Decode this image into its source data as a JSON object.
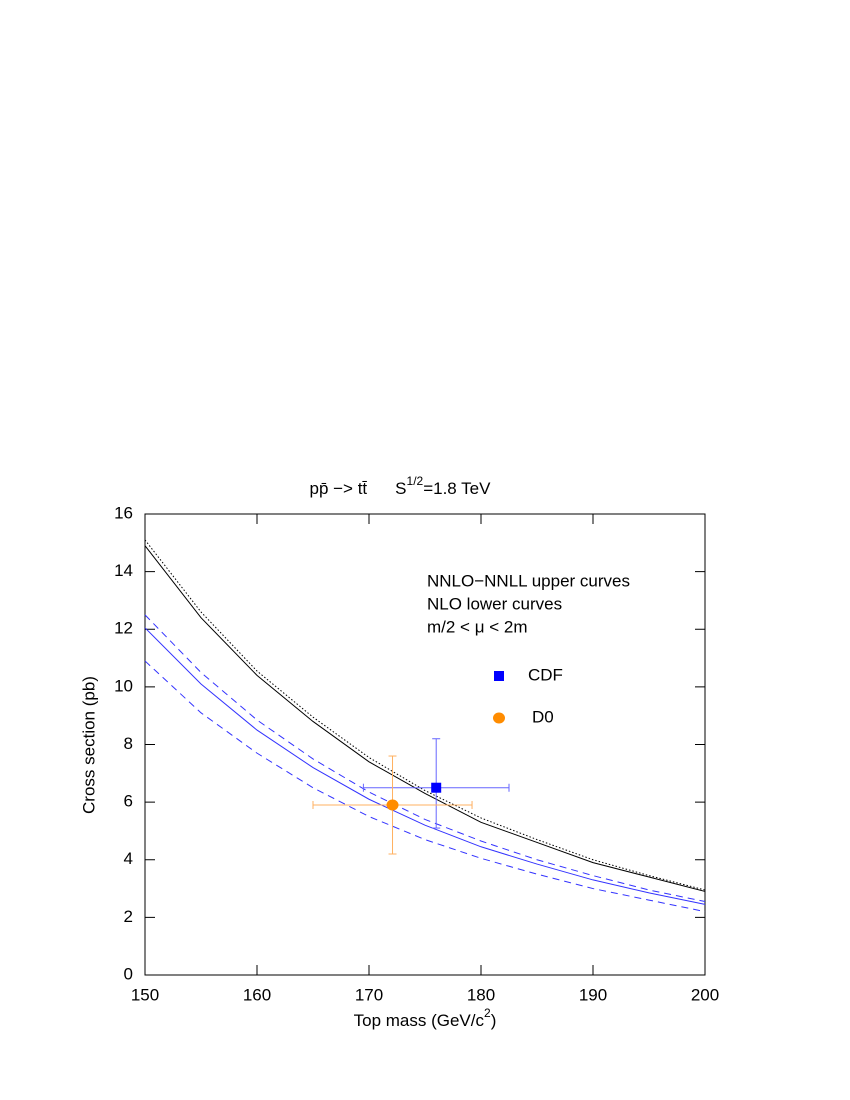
{
  "chart_data": {
    "type": "line",
    "title": {
      "process": "pp̄ −> tt̄",
      "energy_base": "S",
      "energy_exp": "1/2",
      "energy_rest": "=1.8 TeV"
    },
    "x_label": {
      "text": "Top mass (GeV/c",
      "exp": "2",
      "close": ")"
    },
    "y_label": "Cross section (pb)",
    "annotations": [
      "NNLO−NNLL upper curves",
      "NLO lower curves",
      "m/2 < μ < 2m"
    ],
    "x": [
      150,
      155,
      160,
      165,
      170,
      175,
      180,
      185,
      190,
      195,
      200
    ],
    "series": [
      {
        "color": "#000000",
        "style": "solid",
        "values": [
          14.9,
          12.4,
          10.4,
          8.8,
          7.4,
          6.3,
          5.3,
          4.6,
          3.9,
          3.4,
          2.9
        ]
      },
      {
        "color": "#000000",
        "style": "dotted",
        "values": [
          15.1,
          12.6,
          10.55,
          8.95,
          7.55,
          6.4,
          5.45,
          4.7,
          4.0,
          3.45,
          2.95
        ]
      },
      {
        "color": "#3333ff",
        "style": "solid",
        "values": [
          12.05,
          10.1,
          8.5,
          7.2,
          6.1,
          5.2,
          4.45,
          3.85,
          3.3,
          2.85,
          2.45
        ]
      },
      {
        "color": "#3333ff",
        "style": "dashed",
        "values": [
          12.5,
          10.5,
          8.85,
          7.5,
          6.35,
          5.4,
          4.65,
          4.0,
          3.45,
          2.95,
          2.55
        ]
      },
      {
        "color": "#3333ff",
        "style": "dashed",
        "values": [
          10.9,
          9.1,
          7.7,
          6.5,
          5.5,
          4.7,
          4.05,
          3.5,
          3.0,
          2.6,
          2.2
        ]
      }
    ],
    "points": [
      {
        "name": "CDF",
        "color": "#0000ff",
        "err_color": "#6666ff",
        "marker": "square",
        "x": 176.0,
        "xerr": [
          6.5,
          6.5
        ],
        "y": 6.5,
        "yerr": [
          1.4,
          1.7
        ]
      },
      {
        "name": "D0",
        "color": "#ff8c00",
        "err_color": "#ffb060",
        "marker": "circle",
        "x": 172.1,
        "xerr": [
          7.1,
          7.1
        ],
        "y": 5.9,
        "yerr": [
          1.7,
          1.7
        ]
      }
    ],
    "xlim": [
      150,
      200
    ],
    "xticks": [
      150,
      160,
      170,
      180,
      190,
      200
    ],
    "ylim": [
      0,
      16
    ],
    "yticks": [
      0,
      2,
      4,
      6,
      8,
      10,
      12,
      14,
      16
    ]
  }
}
